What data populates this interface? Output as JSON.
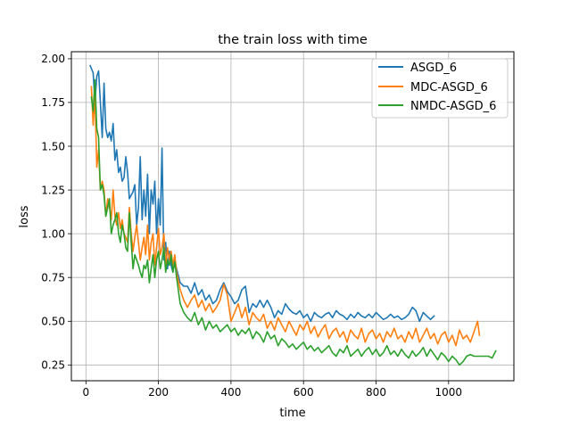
{
  "chart_data": {
    "type": "line",
    "title": "the train loss with time",
    "xlabel": "time",
    "ylabel": "loss",
    "xlim": [
      -40,
      1180
    ],
    "ylim": [
      0.16,
      2.04
    ],
    "xticks": [
      0,
      200,
      400,
      600,
      800,
      1000
    ],
    "xtick_labels": [
      "0",
      "200",
      "400",
      "600",
      "800",
      "1000"
    ],
    "yticks": [
      0.25,
      0.5,
      0.75,
      1.0,
      1.25,
      1.5,
      1.75,
      2.0
    ],
    "ytick_labels": [
      "0.25",
      "0.50",
      "0.75",
      "1.00",
      "1.25",
      "1.50",
      "1.75",
      "2.00"
    ],
    "grid": true,
    "legend_position": "top-right",
    "series": [
      {
        "name": "ASGD_6",
        "color": "#1f77b4",
        "x": [
          12,
          20,
          25,
          30,
          35,
          40,
          45,
          50,
          55,
          60,
          65,
          70,
          75,
          80,
          85,
          90,
          95,
          100,
          105,
          110,
          115,
          120,
          125,
          130,
          135,
          140,
          145,
          150,
          155,
          160,
          165,
          170,
          175,
          180,
          185,
          190,
          195,
          200,
          205,
          210,
          215,
          220,
          225,
          230,
          235,
          240,
          245,
          250,
          260,
          270,
          280,
          290,
          300,
          310,
          320,
          330,
          340,
          350,
          360,
          370,
          380,
          390,
          400,
          410,
          420,
          430,
          440,
          450,
          460,
          470,
          480,
          490,
          500,
          510,
          520,
          530,
          540,
          550,
          560,
          570,
          580,
          590,
          600,
          610,
          620,
          630,
          640,
          650,
          660,
          670,
          680,
          690,
          700,
          710,
          720,
          730,
          740,
          750,
          760,
          770,
          780,
          790,
          800,
          810,
          820,
          830,
          840,
          850,
          860,
          870,
          880,
          890,
          900,
          910,
          920,
          930,
          940,
          950,
          960
        ],
        "values": [
          1.96,
          1.92,
          1.75,
          1.9,
          1.93,
          1.75,
          1.55,
          1.86,
          1.6,
          1.55,
          1.58,
          1.53,
          1.63,
          1.42,
          1.48,
          1.35,
          1.38,
          1.3,
          1.32,
          1.44,
          1.35,
          1.2,
          1.22,
          1.24,
          1.28,
          1.05,
          1.15,
          1.44,
          1.08,
          1.25,
          1.1,
          1.34,
          1.0,
          1.25,
          1.17,
          1.3,
          1.0,
          1.2,
          1.05,
          1.49,
          0.85,
          0.95,
          0.8,
          0.9,
          0.82,
          0.78,
          0.85,
          0.8,
          0.72,
          0.7,
          0.7,
          0.66,
          0.72,
          0.65,
          0.68,
          0.62,
          0.65,
          0.6,
          0.62,
          0.68,
          0.72,
          0.67,
          0.64,
          0.6,
          0.62,
          0.68,
          0.7,
          0.55,
          0.6,
          0.58,
          0.62,
          0.58,
          0.62,
          0.58,
          0.52,
          0.56,
          0.54,
          0.6,
          0.57,
          0.55,
          0.54,
          0.56,
          0.52,
          0.54,
          0.5,
          0.55,
          0.53,
          0.52,
          0.54,
          0.55,
          0.52,
          0.56,
          0.54,
          0.53,
          0.51,
          0.54,
          0.52,
          0.55,
          0.53,
          0.52,
          0.54,
          0.52,
          0.55,
          0.53,
          0.51,
          0.52,
          0.54,
          0.52,
          0.53,
          0.51,
          0.52,
          0.54,
          0.58,
          0.56,
          0.5,
          0.55,
          0.53,
          0.51,
          0.53
        ]
      },
      {
        "name": "MDC-ASGD_6",
        "color": "#ff7f0e",
        "x": [
          15,
          20,
          25,
          30,
          35,
          40,
          45,
          50,
          55,
          60,
          65,
          70,
          75,
          80,
          85,
          90,
          95,
          100,
          105,
          110,
          115,
          120,
          125,
          130,
          135,
          140,
          145,
          150,
          155,
          160,
          165,
          170,
          175,
          180,
          185,
          190,
          195,
          200,
          205,
          210,
          215,
          220,
          225,
          230,
          235,
          240,
          245,
          250,
          260,
          270,
          280,
          290,
          300,
          310,
          320,
          330,
          340,
          350,
          360,
          370,
          380,
          390,
          400,
          410,
          420,
          430,
          440,
          450,
          460,
          470,
          480,
          490,
          500,
          510,
          520,
          530,
          540,
          550,
          560,
          570,
          580,
          590,
          600,
          610,
          620,
          630,
          640,
          650,
          660,
          670,
          680,
          690,
          700,
          710,
          720,
          730,
          740,
          750,
          760,
          770,
          780,
          790,
          800,
          810,
          820,
          830,
          840,
          850,
          860,
          870,
          880,
          890,
          900,
          910,
          920,
          930,
          940,
          950,
          960,
          970,
          980,
          990,
          1000,
          1010,
          1020,
          1030,
          1040,
          1050,
          1060,
          1070,
          1080,
          1085
        ],
        "values": [
          1.84,
          1.62,
          1.8,
          1.38,
          1.48,
          1.25,
          1.3,
          1.25,
          1.1,
          1.2,
          1.15,
          1.08,
          1.25,
          1.1,
          1.05,
          1.12,
          1.03,
          1.08,
          1.0,
          0.98,
          0.95,
          1.15,
          1.0,
          0.9,
          0.98,
          1.05,
          0.95,
          0.85,
          0.92,
          0.98,
          0.88,
          1.05,
          0.85,
          0.95,
          1.0,
          0.82,
          0.92,
          1.03,
          0.88,
          0.92,
          1.0,
          0.8,
          0.92,
          0.85,
          0.9,
          0.82,
          0.88,
          0.78,
          0.68,
          0.62,
          0.58,
          0.62,
          0.65,
          0.58,
          0.62,
          0.56,
          0.6,
          0.55,
          0.58,
          0.62,
          0.71,
          0.65,
          0.5,
          0.55,
          0.6,
          0.52,
          0.58,
          0.48,
          0.55,
          0.52,
          0.5,
          0.54,
          0.46,
          0.5,
          0.45,
          0.52,
          0.48,
          0.44,
          0.5,
          0.46,
          0.42,
          0.48,
          0.45,
          0.5,
          0.43,
          0.47,
          0.41,
          0.45,
          0.48,
          0.4,
          0.44,
          0.46,
          0.41,
          0.44,
          0.38,
          0.45,
          0.42,
          0.4,
          0.46,
          0.38,
          0.43,
          0.45,
          0.4,
          0.43,
          0.38,
          0.44,
          0.41,
          0.46,
          0.4,
          0.42,
          0.38,
          0.44,
          0.4,
          0.46,
          0.38,
          0.42,
          0.46,
          0.4,
          0.43,
          0.37,
          0.42,
          0.44,
          0.38,
          0.42,
          0.36,
          0.45,
          0.4,
          0.42,
          0.38,
          0.44,
          0.5,
          0.42
        ]
      },
      {
        "name": "NMDC-ASGD_6",
        "color": "#2ca02c",
        "x": [
          15,
          20,
          25,
          30,
          35,
          40,
          45,
          50,
          55,
          60,
          65,
          70,
          75,
          80,
          85,
          90,
          95,
          100,
          105,
          110,
          115,
          120,
          125,
          130,
          135,
          140,
          145,
          150,
          155,
          160,
          165,
          170,
          175,
          180,
          185,
          190,
          195,
          200,
          205,
          210,
          215,
          220,
          225,
          230,
          235,
          240,
          245,
          250,
          260,
          270,
          280,
          290,
          300,
          310,
          320,
          330,
          340,
          350,
          360,
          370,
          380,
          390,
          400,
          410,
          420,
          430,
          440,
          450,
          460,
          470,
          480,
          490,
          500,
          510,
          520,
          530,
          540,
          550,
          560,
          570,
          580,
          590,
          600,
          610,
          620,
          630,
          640,
          650,
          660,
          670,
          680,
          690,
          700,
          710,
          720,
          730,
          740,
          750,
          760,
          770,
          780,
          790,
          800,
          810,
          820,
          830,
          840,
          850,
          860,
          870,
          880,
          890,
          900,
          910,
          920,
          930,
          940,
          950,
          960,
          970,
          980,
          990,
          1000,
          1010,
          1020,
          1030,
          1040,
          1050,
          1060,
          1070,
          1080,
          1090,
          1100,
          1110,
          1120,
          1130
        ],
        "values": [
          1.78,
          1.7,
          1.88,
          1.6,
          1.55,
          1.25,
          1.28,
          1.22,
          1.1,
          1.15,
          1.2,
          1.0,
          1.05,
          1.08,
          1.12,
          1.0,
          0.95,
          1.05,
          1.0,
          0.92,
          0.9,
          1.12,
          0.95,
          0.8,
          0.88,
          0.85,
          0.82,
          0.78,
          0.75,
          0.82,
          0.8,
          0.85,
          0.72,
          0.8,
          0.88,
          0.75,
          0.85,
          0.9,
          0.8,
          0.85,
          0.92,
          0.78,
          0.85,
          0.82,
          0.88,
          0.78,
          0.84,
          0.75,
          0.6,
          0.55,
          0.52,
          0.5,
          0.55,
          0.48,
          0.52,
          0.45,
          0.5,
          0.46,
          0.48,
          0.44,
          0.46,
          0.48,
          0.44,
          0.46,
          0.42,
          0.45,
          0.43,
          0.46,
          0.4,
          0.44,
          0.42,
          0.38,
          0.44,
          0.4,
          0.42,
          0.36,
          0.4,
          0.38,
          0.35,
          0.37,
          0.34,
          0.36,
          0.38,
          0.34,
          0.36,
          0.33,
          0.35,
          0.32,
          0.34,
          0.36,
          0.32,
          0.3,
          0.34,
          0.32,
          0.36,
          0.3,
          0.32,
          0.34,
          0.3,
          0.33,
          0.35,
          0.31,
          0.34,
          0.3,
          0.32,
          0.36,
          0.31,
          0.33,
          0.3,
          0.34,
          0.31,
          0.29,
          0.33,
          0.3,
          0.32,
          0.35,
          0.3,
          0.34,
          0.31,
          0.28,
          0.32,
          0.3,
          0.27,
          0.3,
          0.28,
          0.25,
          0.27,
          0.3,
          0.31,
          0.3,
          0.3,
          0.3,
          0.3,
          0.3,
          0.29,
          0.33
        ]
      }
    ]
  }
}
